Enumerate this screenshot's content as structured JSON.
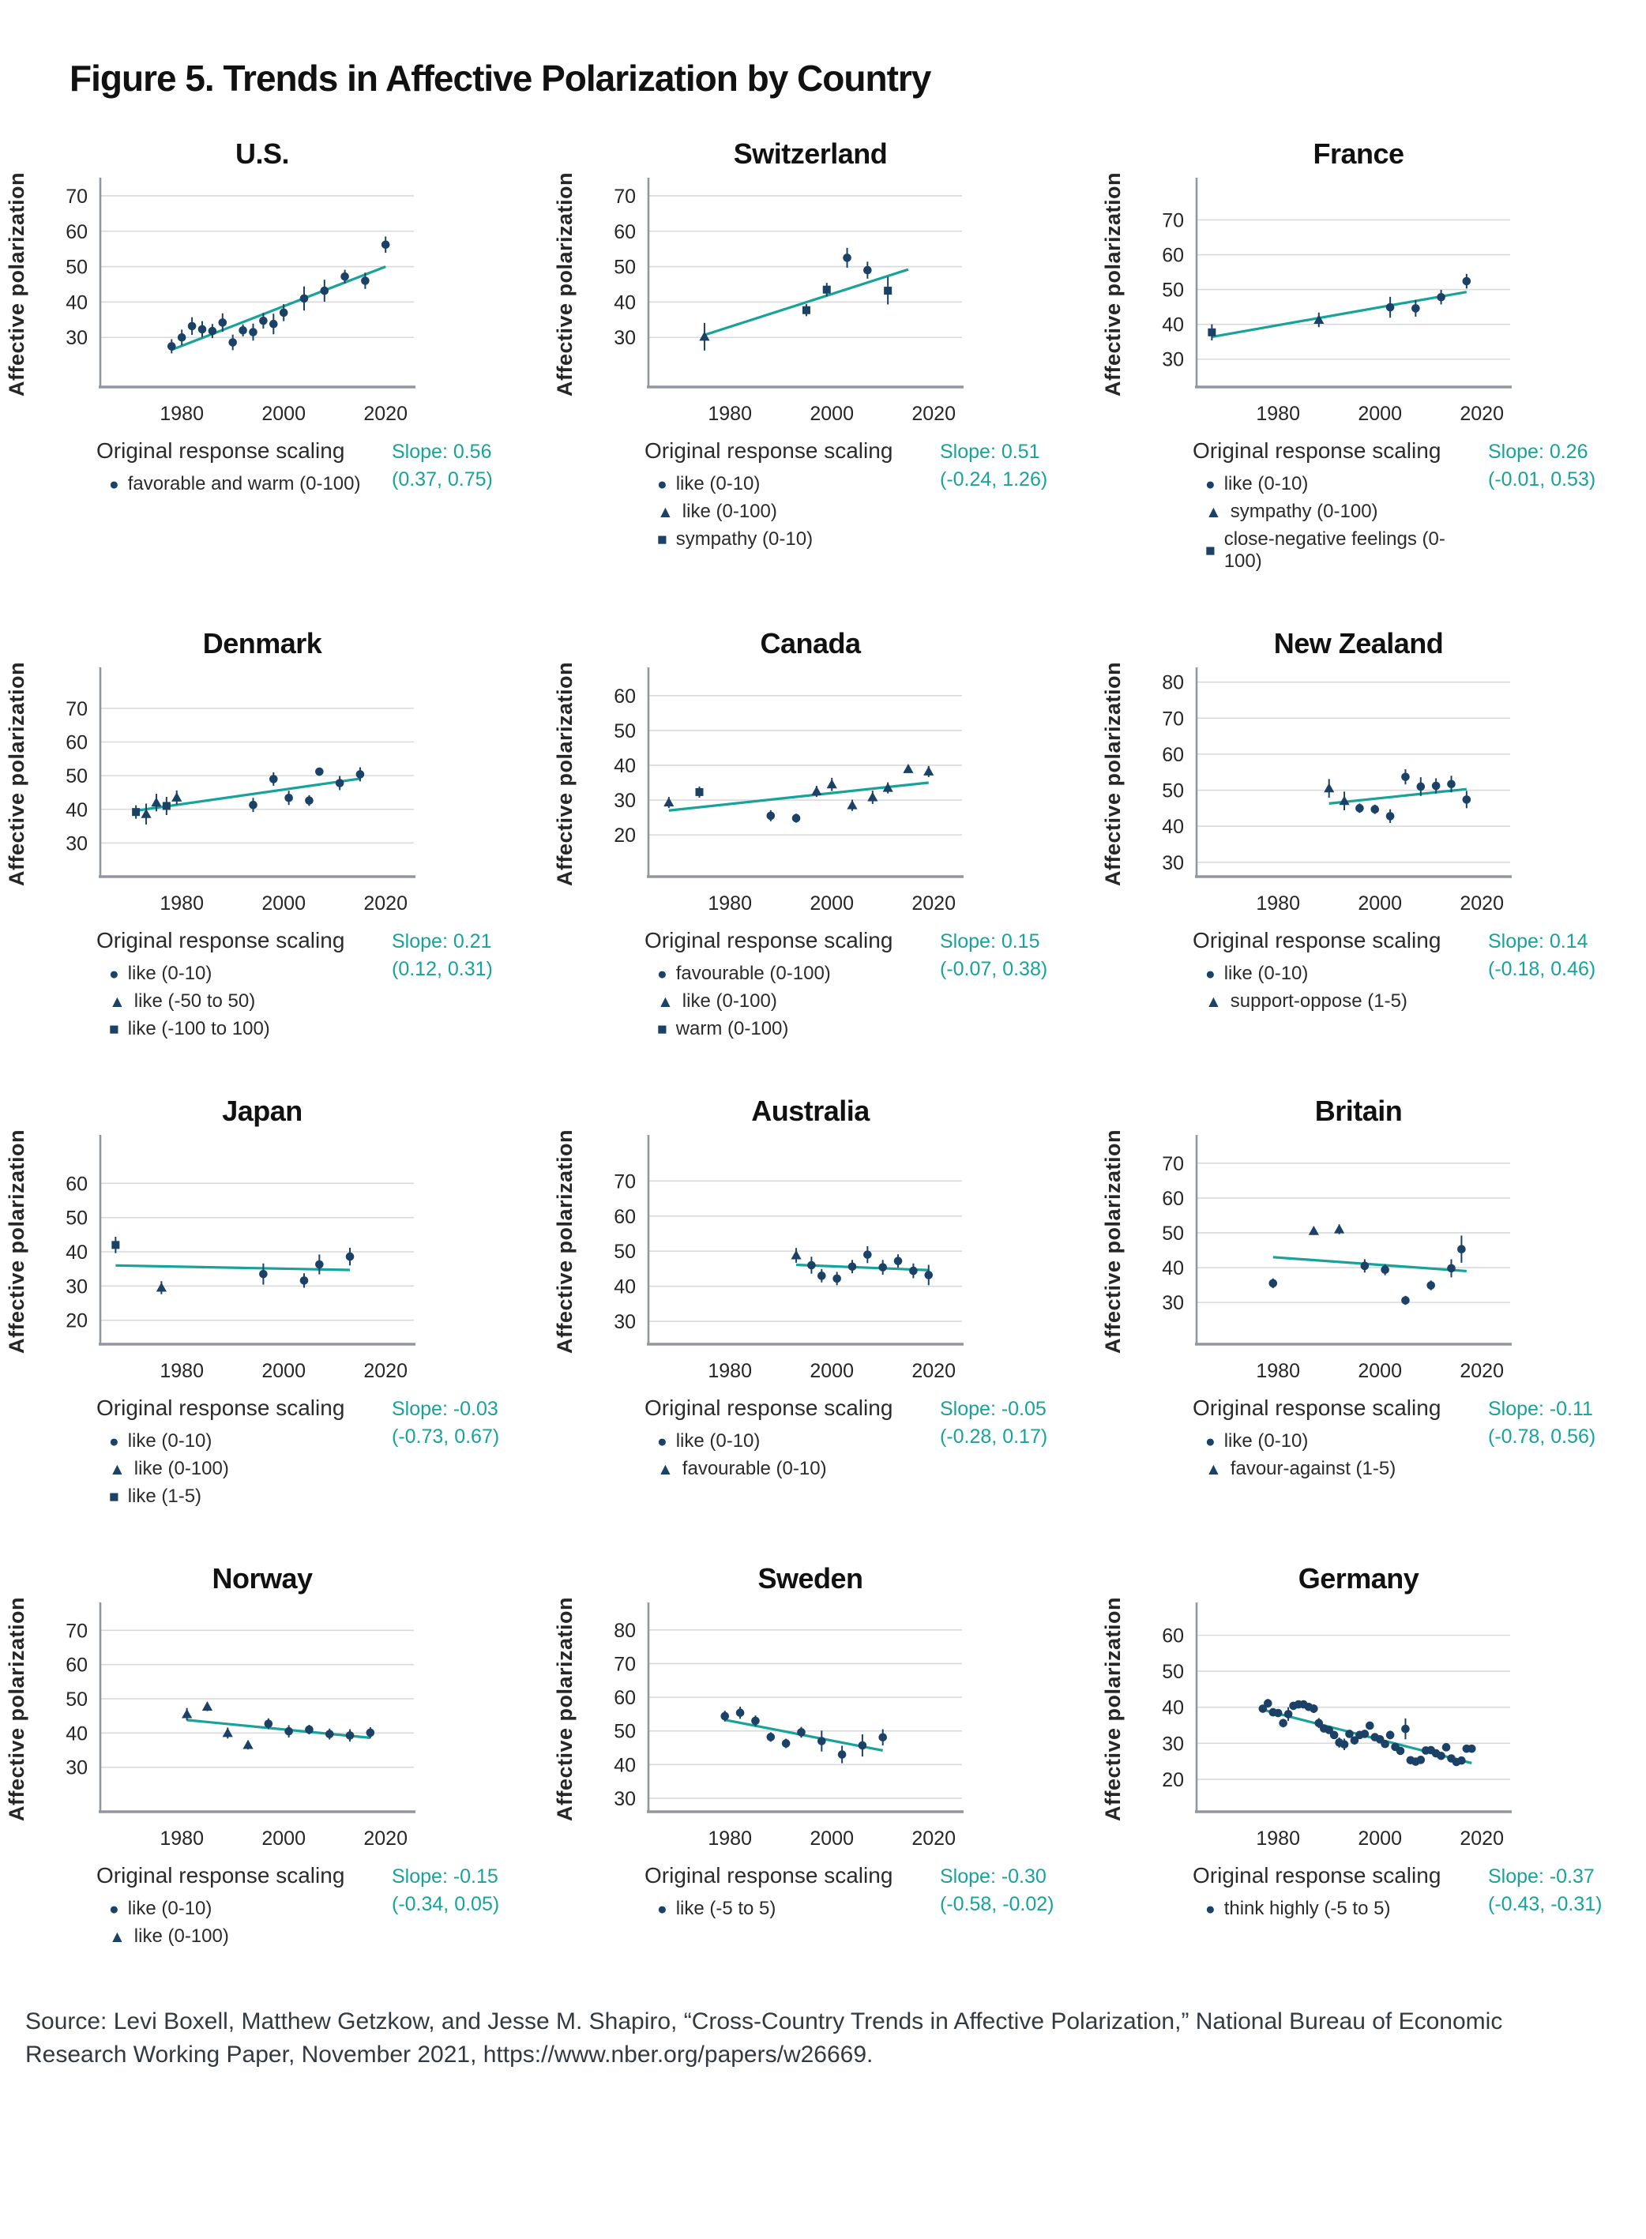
{
  "figure": {
    "title": "Figure 5. Trends in Affective Polarization by Country"
  },
  "axes": {
    "ylabel": "Affective polarization",
    "xticks": [
      "1980",
      "2000",
      "2020"
    ],
    "xlim": [
      1964,
      2024
    ]
  },
  "legend_title": "Original response scaling",
  "colors": {
    "point": "#1b4166",
    "trend": "#18a39a",
    "slope_text": "#18a39a",
    "grid": "#d9d9d9",
    "axis": "#90989f",
    "title": "#111111",
    "text": "#262626",
    "source": "#333940"
  },
  "source": {
    "text": "Source: Levi Boxell, Matthew Getzkow, and Jesse M. Shapiro, “Cross-Country Trends in Affective Polarization,” National Bureau of Economic Research Working Paper, November 2021, https://www.nber.org/papers/w26669."
  },
  "chart_data": [
    {
      "id": "us",
      "type": "scatter",
      "title": "U.S.",
      "ylim": [
        16,
        74
      ],
      "yticks": [
        30,
        40,
        50,
        60,
        70
      ],
      "trend": {
        "x": [
          1978,
          2020
        ],
        "y": [
          26.5,
          50
        ]
      },
      "slope": "Slope: 0.56",
      "ci": "(0.37, 0.75)",
      "legend": [
        {
          "marker": "circle",
          "label": "favorable and warm (0-100)"
        }
      ],
      "err_default": 1.5,
      "points": [
        [
          1978,
          27.5,
          2.0
        ],
        [
          1980,
          30,
          2.2
        ],
        [
          1982,
          33.2,
          2.5
        ],
        [
          1984,
          32.3,
          2.3
        ],
        [
          1986,
          31.8,
          2.0
        ],
        [
          1988,
          34.2,
          2.6
        ],
        [
          1990,
          28.6,
          2.2
        ],
        [
          1992,
          32,
          1.7
        ],
        [
          1994,
          31.5,
          2.4
        ],
        [
          1996,
          34.7,
          2.2
        ],
        [
          1998,
          33.8,
          2.9
        ],
        [
          2000,
          37,
          2.4
        ],
        [
          2004,
          41,
          3.4
        ],
        [
          2008,
          43.2,
          3.1
        ],
        [
          2012,
          47.2,
          1.9
        ],
        [
          2016,
          46,
          2.3
        ],
        [
          2020,
          56.2,
          2.3
        ]
      ]
    },
    {
      "id": "switzerland",
      "type": "scatter",
      "title": "Switzerland",
      "ylim": [
        16,
        74
      ],
      "yticks": [
        30,
        40,
        50,
        60,
        70
      ],
      "trend": {
        "x": [
          1975,
          2015
        ],
        "y": [
          30.7,
          49.2
        ]
      },
      "slope": "Slope: 0.51",
      "ci": "(-0.24, 1.26)",
      "legend": [
        {
          "marker": "circle",
          "label": "like (0-10)"
        },
        {
          "marker": "triangle",
          "label": "like (0-100)"
        },
        {
          "marker": "square",
          "label": "sympathy (0-10)"
        }
      ],
      "err_default": 1.5,
      "points": [
        [
          1975,
          30.2,
          3.9,
          "t"
        ],
        [
          1995,
          37.7,
          1.7,
          "s"
        ],
        [
          1999,
          43.5,
          1.9,
          "s"
        ],
        [
          2003,
          52.5,
          2.8,
          "c"
        ],
        [
          2007,
          49,
          2.4,
          "c"
        ],
        [
          2011,
          43.2,
          3.9,
          "s"
        ]
      ]
    },
    {
      "id": "france",
      "type": "scatter",
      "title": "France",
      "ylim": [
        22,
        81
      ],
      "yticks": [
        30,
        40,
        50,
        60,
        70
      ],
      "trend": {
        "x": [
          1967,
          2017
        ],
        "y": [
          36.4,
          49.3
        ]
      },
      "slope": "Slope: 0.26",
      "ci": "(-0.01, 0.53)",
      "legend": [
        {
          "marker": "circle",
          "label": "like (0-10)"
        },
        {
          "marker": "triangle",
          "label": "sympathy (0-100)"
        },
        {
          "marker": "square",
          "label": "close-negative feelings (0-100)"
        }
      ],
      "err_default": 1.5,
      "points": [
        [
          1967,
          37.7,
          2.3,
          "s"
        ],
        [
          1988,
          41.3,
          2.1,
          "t"
        ],
        [
          2002,
          44.9,
          3.0,
          "c"
        ],
        [
          2007,
          44.6,
          2.4,
          "c"
        ],
        [
          2012,
          47.8,
          2.1,
          "c"
        ],
        [
          2017,
          52.4,
          2.1,
          "c"
        ]
      ]
    },
    {
      "id": "denmark",
      "type": "scatter",
      "title": "Denmark",
      "ylim": [
        20,
        81
      ],
      "yticks": [
        30,
        40,
        50,
        60,
        70
      ],
      "trend": {
        "x": [
          1971,
          2015
        ],
        "y": [
          39.6,
          49.1
        ]
      },
      "slope": "Slope: 0.21",
      "ci": "(0.12, 0.31)",
      "legend": [
        {
          "marker": "circle",
          "label": "like (0-10)"
        },
        {
          "marker": "triangle",
          "label": "like (-50 to 50)"
        },
        {
          "marker": "square",
          "label": "like (-100 to 100)"
        }
      ],
      "err_default": 1.5,
      "points": [
        [
          1971,
          39.2,
          2.0,
          "s"
        ],
        [
          1973,
          38.6,
          3.1,
          "t"
        ],
        [
          1975,
          42,
          2.6,
          "t"
        ],
        [
          1977,
          41,
          2.7,
          "s"
        ],
        [
          1979,
          43.5,
          2.1,
          "t"
        ],
        [
          1994,
          41.3,
          2.1,
          "c"
        ],
        [
          1998,
          49,
          2.0,
          "c"
        ],
        [
          2001,
          43.4,
          2.1,
          "c"
        ],
        [
          2005,
          42.6,
          1.6,
          "c"
        ],
        [
          2007,
          51.2,
          1.1,
          "c"
        ],
        [
          2011,
          47.8,
          2.1,
          "c"
        ],
        [
          2015,
          50.4,
          2.1,
          "c"
        ]
      ]
    },
    {
      "id": "canada",
      "type": "scatter",
      "title": "Canada",
      "ylim": [
        8,
        67
      ],
      "yticks": [
        20,
        30,
        40,
        50,
        60
      ],
      "trend": {
        "x": [
          1968,
          2019
        ],
        "y": [
          27.0,
          35.0
        ]
      },
      "slope": "Slope: 0.15",
      "ci": "(-0.07, 0.38)",
      "legend": [
        {
          "marker": "circle",
          "label": "favourable (0-100)"
        },
        {
          "marker": "triangle",
          "label": "like (0-100)"
        },
        {
          "marker": "square",
          "label": "warm (0-100)"
        }
      ],
      "err_default": 1.5,
      "points": [
        [
          1968,
          29.3,
          1.6,
          "t"
        ],
        [
          1974,
          32.3,
          1.6,
          "s"
        ],
        [
          1988,
          25.5,
          1.6,
          "c"
        ],
        [
          1993,
          24.8,
          1.3,
          "c"
        ],
        [
          1997,
          32.5,
          1.6,
          "t"
        ],
        [
          2000,
          34.5,
          1.9,
          "t"
        ],
        [
          2004,
          28.5,
          1.6,
          "t"
        ],
        [
          2008,
          30.8,
          1.9,
          "t"
        ],
        [
          2011,
          33.5,
          1.6,
          "t"
        ],
        [
          2015,
          38.9,
          0.9,
          "t"
        ],
        [
          2019,
          38.2,
          1.6,
          "t"
        ]
      ]
    },
    {
      "id": "new-zealand",
      "type": "scatter",
      "title": "New Zealand",
      "ylim": [
        26,
        83
      ],
      "yticks": [
        30,
        40,
        50,
        60,
        70,
        80
      ],
      "trend": {
        "x": [
          1990,
          2017
        ],
        "y": [
          46.3,
          50.3
        ]
      },
      "slope": "Slope: 0.14",
      "ci": "(-0.18, 0.46)",
      "legend": [
        {
          "marker": "circle",
          "label": "like (0-10)"
        },
        {
          "marker": "triangle",
          "label": "support-oppose (1-5)"
        }
      ],
      "err_default": 1.5,
      "points": [
        [
          1990,
          50.5,
          2.6,
          "t"
        ],
        [
          1993,
          47,
          2.6,
          "t"
        ],
        [
          1996,
          45,
          1.3,
          "c"
        ],
        [
          1999,
          44.7,
          1.3,
          "c"
        ],
        [
          2002,
          42.8,
          1.9,
          "c"
        ],
        [
          2005,
          53.7,
          2.1,
          "c"
        ],
        [
          2008,
          51,
          2.6,
          "c"
        ],
        [
          2011,
          51.2,
          2.1,
          "c"
        ],
        [
          2014,
          51.7,
          2.3,
          "c"
        ],
        [
          2017,
          47.4,
          2.4,
          "c"
        ]
      ]
    },
    {
      "id": "japan",
      "type": "scatter",
      "title": "Japan",
      "ylim": [
        13,
        73
      ],
      "yticks": [
        20,
        30,
        40,
        50,
        60
      ],
      "trend": {
        "x": [
          1967,
          2013
        ],
        "y": [
          36.0,
          34.7
        ]
      },
      "slope": "Slope: -0.03",
      "ci": "(-0.73, 0.67)",
      "legend": [
        {
          "marker": "circle",
          "label": "like (0-10)"
        },
        {
          "marker": "triangle",
          "label": "like (0-100)"
        },
        {
          "marker": "square",
          "label": "like (1-5)"
        }
      ],
      "err_default": 1.5,
      "points": [
        [
          1967,
          42,
          2.4,
          "s"
        ],
        [
          1976,
          29.5,
          1.9,
          "t"
        ],
        [
          1996,
          33.5,
          3.1,
          "c"
        ],
        [
          2004,
          31.6,
          2.1,
          "c"
        ],
        [
          2007,
          36.3,
          2.9,
          "c"
        ],
        [
          2013,
          38.6,
          2.6,
          "c"
        ]
      ]
    },
    {
      "id": "australia",
      "type": "scatter",
      "title": "Australia",
      "ylim": [
        23.5,
        82
      ],
      "yticks": [
        30,
        40,
        50,
        60,
        70
      ],
      "trend": {
        "x": [
          1993,
          2019
        ],
        "y": [
          46.1,
          44.6
        ]
      },
      "slope": "Slope: -0.05",
      "ci": "(-0.28, 0.17)",
      "legend": [
        {
          "marker": "circle",
          "label": "like (0-10)"
        },
        {
          "marker": "triangle",
          "label": "favourable (0-10)"
        }
      ],
      "err_default": 1.5,
      "points": [
        [
          1993,
          48.8,
          2.1,
          "t"
        ],
        [
          1996,
          46,
          2.4,
          "c"
        ],
        [
          1998,
          43,
          1.9,
          "c"
        ],
        [
          2001,
          42.2,
          1.9,
          "c"
        ],
        [
          2004,
          45.6,
          1.9,
          "c"
        ],
        [
          2007,
          49,
          2.4,
          "c"
        ],
        [
          2010,
          45.4,
          2.1,
          "c"
        ],
        [
          2013,
          47.2,
          1.9,
          "c"
        ],
        [
          2016,
          44.4,
          2.1,
          "c"
        ],
        [
          2019,
          43.2,
          2.9,
          "c"
        ]
      ]
    },
    {
      "id": "britain",
      "type": "scatter",
      "title": "Britain",
      "ylim": [
        18,
        77
      ],
      "yticks": [
        30,
        40,
        50,
        60,
        70
      ],
      "trend": {
        "x": [
          1979,
          2017
        ],
        "y": [
          43.0,
          39.0
        ]
      },
      "slope": "Slope: -0.11",
      "ci": "(-0.78, 0.56)",
      "legend": [
        {
          "marker": "circle",
          "label": "like (0-10)"
        },
        {
          "marker": "triangle",
          "label": "favour-against (1-5)"
        }
      ],
      "err_default": 1.5,
      "points": [
        [
          1979,
          35.5,
          1.4,
          "c"
        ],
        [
          1987,
          50.5,
          1.1,
          "t"
        ],
        [
          1992,
          51,
          1.4,
          "t"
        ],
        [
          1997,
          40.5,
          1.9,
          "c"
        ],
        [
          2001,
          39.4,
          1.6,
          "c"
        ],
        [
          2005,
          30.6,
          1.3,
          "c"
        ],
        [
          2010,
          34.9,
          1.4,
          "c"
        ],
        [
          2014,
          39.8,
          2.6,
          "c"
        ],
        [
          2016,
          45.3,
          3.9,
          "c"
        ]
      ]
    },
    {
      "id": "norway",
      "type": "scatter",
      "title": "Norway",
      "ylim": [
        17,
        77
      ],
      "yticks": [
        30,
        40,
        50,
        60,
        70
      ],
      "trend": {
        "x": [
          1981,
          2017
        ],
        "y": [
          43.8,
          38.6
        ]
      },
      "slope": "Slope: -0.15",
      "ci": "(-0.34, 0.05)",
      "legend": [
        {
          "marker": "circle",
          "label": "like (0-10)"
        },
        {
          "marker": "triangle",
          "label": "like (0-100)"
        }
      ],
      "err_default": 1.5,
      "points": [
        [
          1981,
          45.5,
          1.8,
          "t"
        ],
        [
          1985,
          47.7,
          1.3,
          "t"
        ],
        [
          1989,
          40,
          1.6,
          "t"
        ],
        [
          1993,
          36.5,
          1.3,
          "t"
        ],
        [
          1997,
          42.7,
          1.6,
          "c"
        ],
        [
          2001,
          40.5,
          1.8,
          "c"
        ],
        [
          2005,
          41,
          1.4,
          "c"
        ],
        [
          2009,
          39.7,
          1.6,
          "c"
        ],
        [
          2013,
          39.3,
          1.8,
          "c"
        ],
        [
          2017,
          40.1,
          1.6,
          "c"
        ]
      ]
    },
    {
      "id": "sweden",
      "type": "scatter",
      "title": "Sweden",
      "ylim": [
        26,
        87
      ],
      "yticks": [
        30,
        40,
        50,
        60,
        70,
        80
      ],
      "trend": {
        "x": [
          1979,
          2010
        ],
        "y": [
          53.3,
          44.2
        ]
      },
      "slope": "Slope: -0.30",
      "ci": "(-0.58, -0.02)",
      "legend": [
        {
          "marker": "circle",
          "label": "like (-5 to 5)"
        }
      ],
      "err_default": 1.5,
      "points": [
        [
          1979,
          54.4,
          1.6,
          "c"
        ],
        [
          1982,
          55.4,
          1.8,
          "c"
        ],
        [
          1985,
          53,
          1.6,
          "c"
        ],
        [
          1988,
          48.2,
          1.4,
          "c"
        ],
        [
          1991,
          46.3,
          1.4,
          "c"
        ],
        [
          1994,
          49.6,
          1.6,
          "c"
        ],
        [
          1998,
          47,
          3.1,
          "c"
        ],
        [
          2002,
          43,
          2.6,
          "c"
        ],
        [
          2006,
          45.7,
          3.3,
          "c"
        ],
        [
          2010,
          48.1,
          2.4,
          "c"
        ]
      ]
    },
    {
      "id": "germany",
      "type": "scatter",
      "title": "Germany",
      "ylim": [
        11,
        68
      ],
      "yticks": [
        20,
        30,
        40,
        50,
        60
      ],
      "trend": {
        "x": [
          1977,
          2018
        ],
        "y": [
          39.3,
          24.5
        ]
      },
      "slope": "Slope: -0.37",
      "ci": "(-0.43, -0.31)",
      "legend": [
        {
          "marker": "circle",
          "label": "think highly (-5 to 5)"
        }
      ],
      "err_default": 0.9,
      "points": [
        [
          1977,
          39.6
        ],
        [
          1978,
          41.1,
          1.2
        ],
        [
          1979,
          38.6
        ],
        [
          1980,
          38.4
        ],
        [
          1981,
          35.6,
          1.2
        ],
        [
          1982,
          38.1,
          1.9
        ],
        [
          1983,
          40.4
        ],
        [
          1984,
          40.8
        ],
        [
          1985,
          40.8
        ],
        [
          1986,
          40.1
        ],
        [
          1987,
          39.6,
          1.2
        ],
        [
          1988,
          35.6,
          1.4
        ],
        [
          1989,
          34.1
        ],
        [
          1990,
          33.7
        ],
        [
          1991,
          32.3
        ],
        [
          1992,
          30.2,
          1.4
        ],
        [
          1993,
          29.7,
          1.6
        ],
        [
          1994,
          32.6
        ],
        [
          1995,
          30.8
        ],
        [
          1996,
          32.3
        ],
        [
          1997,
          32.6
        ],
        [
          1998,
          34.9,
          1.1
        ],
        [
          1999,
          31.7
        ],
        [
          2000,
          31.1
        ],
        [
          2001,
          29.8
        ],
        [
          2002,
          32.3,
          1.2
        ],
        [
          2003,
          29.0
        ],
        [
          2004,
          27.9
        ],
        [
          2005,
          34.0,
          2.9
        ],
        [
          2006,
          25.3
        ],
        [
          2007,
          24.9
        ],
        [
          2008,
          25.4
        ],
        [
          2009,
          28.0
        ],
        [
          2010,
          28.1
        ],
        [
          2011,
          27.2
        ],
        [
          2012,
          26.5
        ],
        [
          2013,
          28.9
        ],
        [
          2014,
          25.8
        ],
        [
          2015,
          24.8
        ],
        [
          2016,
          25.2
        ],
        [
          2017,
          28.5
        ],
        [
          2018,
          28.5
        ]
      ]
    }
  ]
}
